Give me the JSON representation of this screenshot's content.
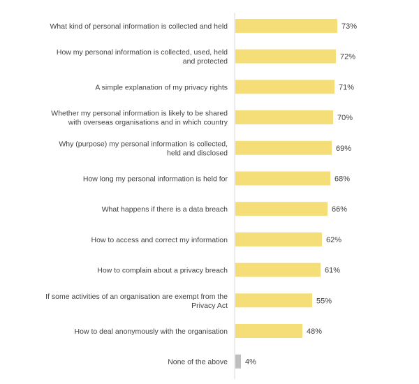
{
  "chart_data": {
    "type": "bar",
    "orientation": "horizontal",
    "categories": [
      [
        "What kind of personal information is collected and held"
      ],
      [
        "How my personal information is collected, used, held",
        "and protected"
      ],
      [
        "A simple explanation of my privacy rights"
      ],
      [
        "Whether my personal information is likely to be shared",
        "with overseas organisations and in which country"
      ],
      [
        "Why (purpose) my personal information is collected,",
        "held and disclosed"
      ],
      [
        "How long my personal information is held for"
      ],
      [
        "What happens if there is a data breach"
      ],
      [
        "How to access and correct my information"
      ],
      [
        "How to complain about a privacy breach"
      ],
      [
        "If some activities of an organisation are exempt from the",
        "Privacy Act"
      ],
      [
        "How to deal anonymously with the organisation"
      ],
      [
        "None of the above"
      ]
    ],
    "values": [
      73,
      72,
      71,
      70,
      69,
      68,
      66,
      62,
      61,
      55,
      48,
      4
    ],
    "value_labels": [
      "73%",
      "72%",
      "71%",
      "70%",
      "69%",
      "68%",
      "66%",
      "62%",
      "61%",
      "55%",
      "48%",
      "4%"
    ],
    "bar_colors": [
      "#f5de78",
      "#f5de78",
      "#f5de78",
      "#f5de78",
      "#f5de78",
      "#f5de78",
      "#f5de78",
      "#f5de78",
      "#f5de78",
      "#f5de78",
      "#f5de78",
      "#bfbfbf"
    ],
    "axis_line_color": "#d9d9d9",
    "xlim": [
      0,
      100
    ],
    "grid": false,
    "legend": "none"
  }
}
